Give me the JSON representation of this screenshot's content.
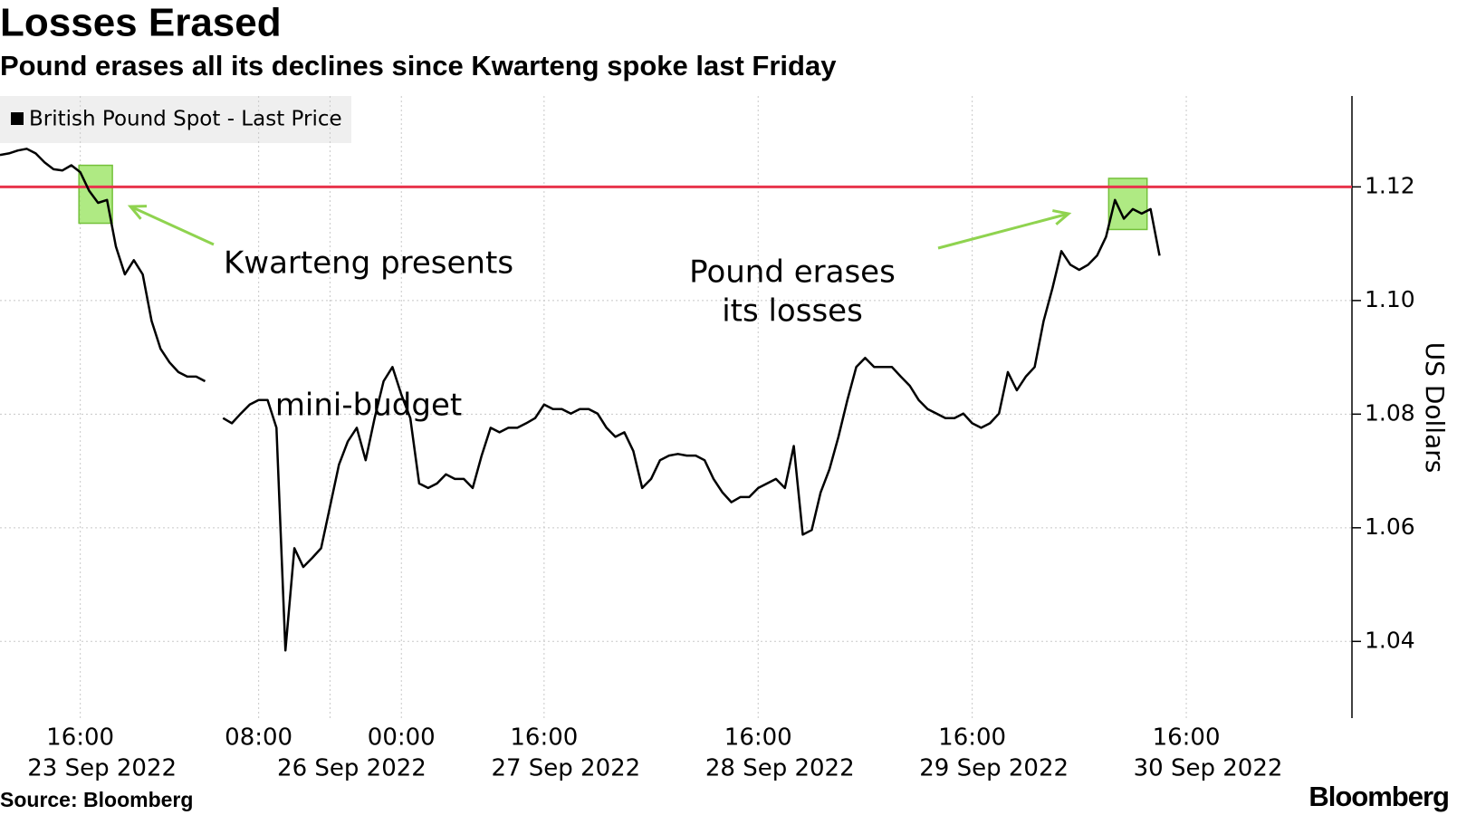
{
  "chart_data": {
    "type": "line",
    "title": "Losses Erased",
    "subtitle": "Pound erases all its declines since Kwarteng spoke last Friday",
    "source": "Source: Bloomberg",
    "brand": "Bloomberg",
    "y_axis_label": "US Dollars",
    "ylim": [
      1.0265,
      1.136
    ],
    "yticks": [
      1.04,
      1.06,
      1.08,
      {
        "value": 1.1,
        "label": "1.10"
      },
      1.12
    ],
    "grid": true,
    "legend": "top-left",
    "reference_line": {
      "value": 1.12,
      "color": "#e8344c"
    },
    "highlights": [
      {
        "x": [
          8.85,
          12.6
        ],
        "y": [
          1.1136,
          1.1238
        ]
      },
      {
        "x": [
          124.3,
          128.6
        ],
        "y": [
          1.1125,
          1.1215
        ]
      }
    ],
    "annotations": [
      {
        "lines": [
          "Kwarteng presents",
          "mini-budget"
        ]
      },
      {
        "lines": [
          "Pound erases",
          "its losses"
        ]
      }
    ],
    "categories": [
      null,
      null,
      null,
      null,
      null,
      null,
      null,
      null,
      null,
      {
        "time": "16:00",
        "date": "23 Sep 2022"
      },
      null,
      null,
      null,
      null,
      null,
      null,
      null,
      null,
      null,
      null,
      null,
      null,
      null,
      null,
      null,
      null,
      null,
      null,
      null,
      {
        "time": "08:00"
      },
      null,
      null,
      null,
      null,
      null,
      null,
      null,
      {
        "date": "26 Sep 2022"
      },
      null,
      null,
      null,
      null,
      null,
      null,
      null,
      {
        "time": "00:00"
      },
      null,
      null,
      null,
      null,
      null,
      null,
      null,
      null,
      null,
      null,
      null,
      null,
      null,
      null,
      null,
      {
        "time": "16:00",
        "date": "27 Sep 2022"
      },
      null,
      null,
      null,
      null,
      null,
      null,
      null,
      null,
      null,
      null,
      null,
      null,
      null,
      null,
      null,
      null,
      null,
      null,
      null,
      null,
      null,
      null,
      null,
      {
        "time": "16:00",
        "date": "28 Sep 2022"
      },
      null,
      null,
      null,
      null,
      null,
      null,
      null,
      null,
      null,
      null,
      null,
      null,
      null,
      null,
      null,
      null,
      null,
      null,
      null,
      null,
      null,
      null,
      null,
      {
        "time": "16:00",
        "date": "29 Sep 2022"
      },
      null,
      null,
      null,
      null,
      null,
      null,
      null,
      null,
      null,
      null,
      null,
      null,
      null,
      null,
      null,
      null,
      null,
      null,
      null,
      null,
      null,
      null,
      null,
      {
        "time": "16:00",
        "date": "30 Sep 2022"
      }
    ],
    "series": [
      {
        "name": "British Pound Spot - Last Price",
        "color": "#000000",
        "values": [
          1.1256,
          1.1259,
          1.1264,
          1.1267,
          1.1259,
          1.1243,
          1.1231,
          1.1229,
          1.1238,
          1.1226,
          1.1193,
          1.1172,
          1.1177,
          1.1095,
          1.1046,
          1.1071,
          1.1046,
          1.0964,
          1.0915,
          1.0891,
          1.0874,
          1.0866,
          1.0866,
          1.0858,
          null,
          1.0793,
          1.0784,
          1.0801,
          1.0817,
          1.0825,
          1.0825,
          1.0776,
          1.0384,
          1.0564,
          1.0531,
          1.0547,
          1.0564,
          1.0637,
          1.0711,
          1.0752,
          1.0776,
          1.0719,
          1.0793,
          1.0858,
          1.0883,
          1.0834,
          1.0793,
          1.0678,
          1.067,
          1.0678,
          1.0694,
          1.0686,
          1.0686,
          1.067,
          1.0727,
          1.0776,
          1.0768,
          1.0776,
          1.0776,
          1.0784,
          1.0793,
          1.0817,
          1.0809,
          1.0809,
          1.0801,
          1.0809,
          1.0809,
          1.0801,
          1.0776,
          1.076,
          1.0768,
          1.0735,
          1.067,
          1.0686,
          1.0719,
          1.0727,
          1.073,
          1.0727,
          1.0727,
          1.0719,
          1.0686,
          1.0662,
          1.0645,
          1.0654,
          1.0654,
          1.067,
          1.0678,
          1.0686,
          1.067,
          1.0744,
          1.0588,
          1.0596,
          1.0662,
          1.0703,
          1.076,
          1.0825,
          1.0883,
          1.0899,
          1.0883,
          1.0883,
          1.0883,
          1.0866,
          1.085,
          1.0825,
          1.0809,
          1.0801,
          1.0793,
          1.0793,
          1.0801,
          1.0784,
          1.0776,
          1.0784,
          1.0801,
          1.0874,
          1.0842,
          1.0866,
          1.0883,
          1.0964,
          1.1022,
          1.1087,
          1.1063,
          1.1054,
          1.1063,
          1.1079,
          1.1112,
          1.1177,
          1.1144,
          1.1161,
          1.1153,
          1.1161,
          1.1079,
          null,
          null,
          null
        ]
      }
    ]
  }
}
